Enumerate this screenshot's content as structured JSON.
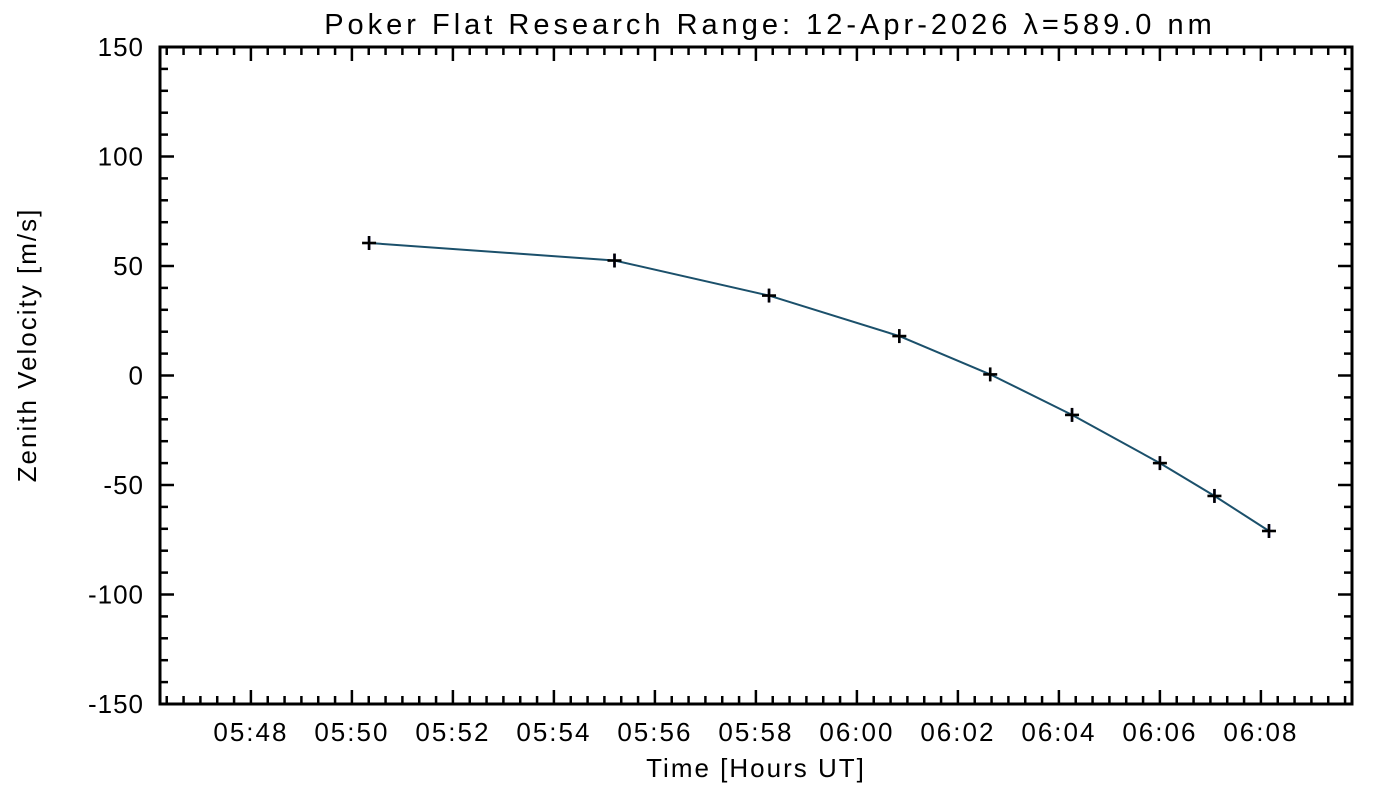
{
  "window": {
    "background": "#ffffff"
  },
  "chart_data": {
    "type": "line",
    "title": "Poker Flat Research Range: 12-Apr-2026 λ=589.0 nm",
    "xlabel": "Time [Hours UT]",
    "ylabel": "Zenith Velocity [m/s]",
    "x_hours": [
      5.839,
      5.92,
      5.971,
      6.014,
      6.044,
      6.071,
      6.1,
      6.118,
      6.136
    ],
    "x_time_labels": [
      "05:50.3",
      "05:55.2",
      "05:58.3",
      "06:00.9",
      "06:02.7",
      "06:04.3",
      "06:06.0",
      "06:07.1",
      "06:08.2"
    ],
    "y_values": [
      60.5,
      52.5,
      36.5,
      18,
      0.5,
      -18,
      -40,
      -55,
      -71
    ],
    "y_error": 3,
    "marker": "plus",
    "xlim_hours": [
      5.77,
      6.1634
    ],
    "ylim": [
      -150,
      150
    ],
    "x_tick_labels": [
      "05:48",
      "05:50",
      "05:52",
      "05:54",
      "05:56",
      "05:58",
      "06:00",
      "06:02",
      "06:04",
      "06:06",
      "06:08"
    ],
    "x_tick_hours": [
      5.8,
      5.83333,
      5.86667,
      5.9,
      5.93333,
      5.96667,
      6.0,
      6.03333,
      6.06667,
      6.1,
      6.13333
    ],
    "y_tick_values": [
      150,
      100,
      50,
      0,
      -50,
      -100,
      -150
    ],
    "x_minor_step_hours": 0.0055556,
    "x_minor_per_major": 6,
    "y_minor_step": 10,
    "y_minor_per_major": 5,
    "grid": false,
    "legend": false,
    "colors": {
      "background": "#ffffff",
      "axis": "#000000",
      "line": "#1b506b",
      "marker": "#000000",
      "error_bar": "#2a2ae0",
      "text": "#000000"
    }
  }
}
